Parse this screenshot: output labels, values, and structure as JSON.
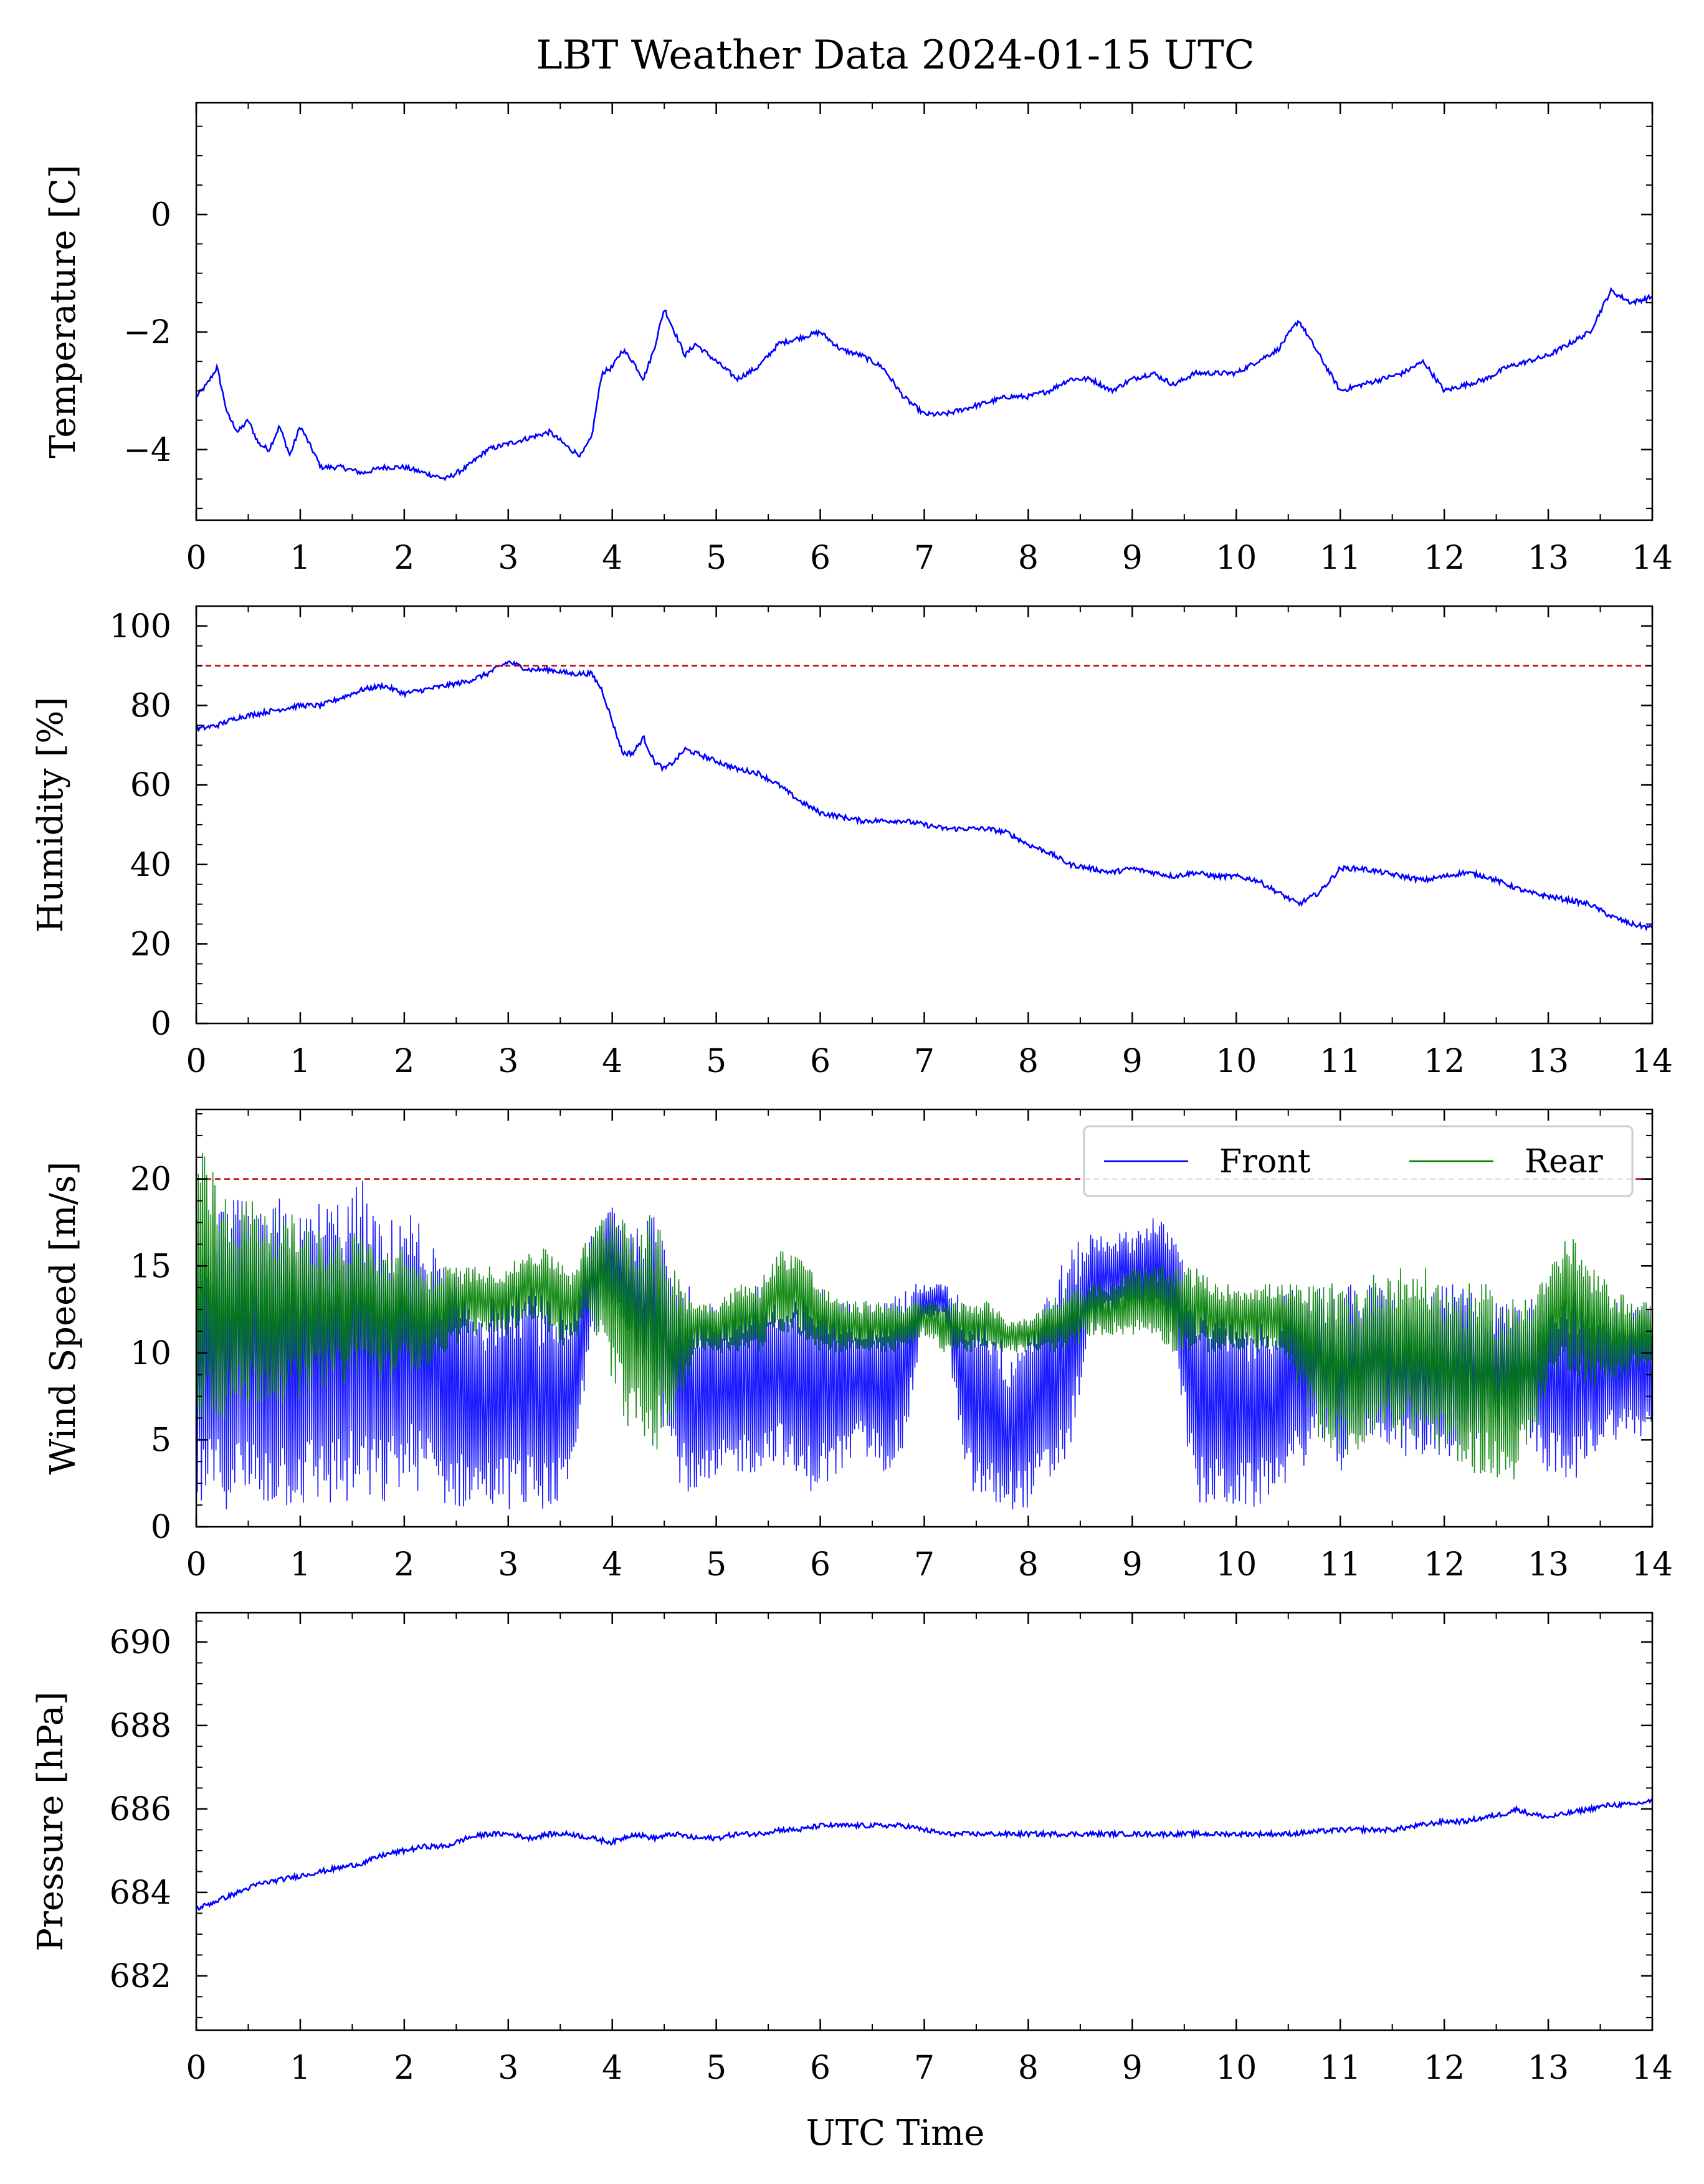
{
  "title": "LBT Weather Data 2024-01-15 UTC",
  "xlabel": "UTC Time",
  "colors": {
    "primary": "#0000ff",
    "secondary": "#008000",
    "threshold": "#c00000"
  },
  "chart_data": [
    {
      "type": "line",
      "ylabel": "Temperature [C]",
      "xlim": [
        0,
        14
      ],
      "ylim": [
        -5.2,
        1.9
      ],
      "yticks": [
        -4,
        -2,
        0
      ],
      "yticklabels": [
        "−4",
        "−2",
        "0"
      ],
      "xticks": [
        0,
        1,
        2,
        3,
        4,
        5,
        6,
        7,
        8,
        9,
        10,
        11,
        12,
        13,
        14
      ],
      "series": [
        {
          "color": "#0000ff",
          "x": [
            0,
            0.1,
            0.2,
            0.3,
            0.4,
            0.5,
            0.6,
            0.7,
            0.8,
            0.9,
            1.0,
            1.2,
            1.4,
            1.6,
            1.8,
            2.0,
            2.2,
            2.4,
            2.6,
            2.8,
            3.0,
            3.2,
            3.4,
            3.6,
            3.7,
            3.8,
            3.9,
            4.0,
            4.1,
            4.2,
            4.3,
            4.4,
            4.5,
            4.6,
            4.7,
            4.8,
            5.0,
            5.2,
            5.4,
            5.6,
            5.8,
            6.0,
            6.2,
            6.4,
            6.6,
            6.8,
            7.0,
            7.2,
            7.4,
            7.6,
            7.8,
            8.0,
            8.2,
            8.4,
            8.6,
            8.8,
            9.0,
            9.2,
            9.4,
            9.6,
            9.8,
            10.0,
            10.2,
            10.4,
            10.6,
            10.7,
            10.8,
            11.0,
            11.2,
            11.4,
            11.6,
            11.8,
            12.0,
            12.2,
            12.4,
            12.6,
            12.8,
            13.0,
            13.2,
            13.4,
            13.6,
            13.8,
            14.0
          ],
          "y": [
            -3.1,
            -2.9,
            -2.6,
            -3.4,
            -3.7,
            -3.5,
            -3.9,
            -4.0,
            -3.6,
            -4.1,
            -3.6,
            -4.3,
            -4.3,
            -4.4,
            -4.3,
            -4.3,
            -4.4,
            -4.5,
            -4.3,
            -4.0,
            -3.9,
            -3.8,
            -3.7,
            -4.0,
            -4.1,
            -3.8,
            -2.7,
            -2.6,
            -2.3,
            -2.5,
            -2.8,
            -2.3,
            -1.6,
            -2.0,
            -2.4,
            -2.2,
            -2.5,
            -2.8,
            -2.6,
            -2.2,
            -2.1,
            -2.0,
            -2.3,
            -2.4,
            -2.6,
            -3.1,
            -3.4,
            -3.4,
            -3.3,
            -3.2,
            -3.1,
            -3.1,
            -3.0,
            -2.8,
            -2.8,
            -3.0,
            -2.8,
            -2.7,
            -2.9,
            -2.7,
            -2.7,
            -2.7,
            -2.5,
            -2.3,
            -1.8,
            -2.1,
            -2.4,
            -3.0,
            -2.9,
            -2.8,
            -2.7,
            -2.5,
            -3.0,
            -2.9,
            -2.8,
            -2.6,
            -2.5,
            -2.4,
            -2.2,
            -2.0,
            -1.3,
            -1.5,
            -1.4
          ]
        }
      ]
    },
    {
      "type": "line",
      "ylabel": "Humidity [%]",
      "xlim": [
        0,
        14
      ],
      "ylim": [
        0,
        105
      ],
      "yticks": [
        0,
        20,
        40,
        60,
        80,
        100
      ],
      "yticklabels": [
        "0",
        "20",
        "40",
        "60",
        "80",
        "100"
      ],
      "xticks": [
        0,
        1,
        2,
        3,
        4,
        5,
        6,
        7,
        8,
        9,
        10,
        11,
        12,
        13,
        14
      ],
      "threshold": 90,
      "series": [
        {
          "color": "#0000ff",
          "x": [
            0,
            0.2,
            0.4,
            0.6,
            0.8,
            1.0,
            1.2,
            1.4,
            1.6,
            1.8,
            2.0,
            2.2,
            2.4,
            2.6,
            2.8,
            3.0,
            3.2,
            3.4,
            3.6,
            3.8,
            3.9,
            4.0,
            4.1,
            4.2,
            4.3,
            4.4,
            4.5,
            4.6,
            4.7,
            4.8,
            5.0,
            5.2,
            5.4,
            5.6,
            5.8,
            6.0,
            6.2,
            6.4,
            6.6,
            6.8,
            7.0,
            7.2,
            7.4,
            7.6,
            7.8,
            8.0,
            8.2,
            8.4,
            8.6,
            8.8,
            9.0,
            9.2,
            9.4,
            9.6,
            9.8,
            10.0,
            10.2,
            10.4,
            10.6,
            10.8,
            11.0,
            11.2,
            11.4,
            11.6,
            11.8,
            12.0,
            12.2,
            12.4,
            12.6,
            12.8,
            13.0,
            13.2,
            13.4,
            13.6,
            13.8,
            14.0
          ],
          "y": [
            74,
            75,
            77,
            78,
            79,
            80,
            80,
            82,
            84,
            85,
            83,
            84,
            85,
            86,
            88,
            91,
            89,
            89,
            88,
            88,
            84,
            76,
            68,
            68,
            72,
            66,
            64,
            66,
            69,
            68,
            66,
            64,
            63,
            60,
            56,
            53,
            52,
            51,
            51,
            51,
            50,
            49,
            49,
            49,
            48,
            45,
            43,
            40,
            39,
            38,
            39,
            38,
            37,
            38,
            37,
            37,
            36,
            33,
            30,
            33,
            39,
            39,
            38,
            37,
            36,
            37,
            38,
            37,
            35,
            33,
            32,
            31,
            30,
            27,
            25,
            24
          ]
        }
      ]
    },
    {
      "type": "line",
      "ylabel": "Wind Speed [m/s]",
      "xlim": [
        0,
        14
      ],
      "ylim": [
        0,
        24
      ],
      "yticks": [
        0,
        5,
        10,
        15,
        20
      ],
      "yticklabels": [
        "0",
        "5",
        "10",
        "15",
        "20"
      ],
      "xticks": [
        0,
        1,
        2,
        3,
        4,
        5,
        6,
        7,
        8,
        9,
        10,
        11,
        12,
        13,
        14
      ],
      "threshold": 20,
      "legend": "top-right",
      "series": [
        {
          "name": "Front",
          "color": "#0000ff",
          "x": [
            0,
            0.2,
            0.4,
            0.6,
            0.8,
            1.0,
            1.2,
            1.4,
            1.6,
            1.8,
            2.0,
            2.2,
            2.4,
            2.6,
            2.8,
            3.0,
            3.2,
            3.4,
            3.6,
            3.8,
            4.0,
            4.2,
            4.4,
            4.6,
            4.8,
            5.0,
            5.2,
            5.4,
            5.6,
            5.8,
            6.0,
            6.2,
            6.4,
            6.6,
            6.8,
            7.0,
            7.2,
            7.4,
            7.6,
            7.8,
            8.0,
            8.2,
            8.4,
            8.6,
            8.8,
            9.0,
            9.2,
            9.4,
            9.6,
            9.8,
            10.0,
            10.2,
            10.4,
            10.6,
            10.8,
            11.0,
            11.2,
            11.4,
            11.6,
            11.8,
            12.0,
            12.2,
            12.4,
            12.6,
            12.8,
            13.0,
            13.2,
            13.4,
            13.6,
            13.8,
            14.0
          ],
          "low": [
            1,
            1,
            1,
            1,
            1,
            1,
            1,
            1,
            1,
            1,
            2,
            2,
            1,
            1,
            1,
            1,
            1,
            1,
            1,
            11,
            12,
            10,
            8,
            3,
            1,
            2,
            3,
            3,
            4,
            2,
            2,
            3,
            4,
            3,
            4,
            12,
            12,
            2,
            1,
            1,
            1,
            2,
            4,
            11,
            12,
            12,
            12,
            11,
            1,
            1,
            1,
            1,
            2,
            3,
            5,
            3,
            5,
            5,
            4,
            4,
            4,
            4,
            5,
            5,
            5,
            3,
            2,
            4,
            5,
            5,
            5
          ],
          "high": [
            17,
            18,
            19,
            18,
            19,
            18,
            19,
            19,
            20,
            17,
            19,
            17,
            15,
            14,
            13,
            14,
            14,
            13,
            13,
            17,
            19,
            17,
            18,
            16,
            13,
            13,
            13,
            14,
            13,
            13,
            14,
            13,
            13,
            13,
            14,
            14,
            14,
            13,
            13,
            10,
            12,
            14,
            16,
            17,
            17,
            17,
            18,
            17,
            14,
            13,
            12,
            12,
            13,
            14,
            14,
            14,
            14,
            14,
            13,
            13,
            14,
            14,
            13,
            13,
            13,
            14,
            14,
            13,
            13,
            13,
            13
          ]
        },
        {
          "name": "Rear",
          "color": "#008000",
          "x": [
            0,
            0.2,
            0.4,
            0.6,
            0.8,
            1.0,
            1.2,
            1.4,
            1.6,
            1.8,
            2.0,
            2.2,
            2.4,
            2.6,
            2.8,
            3.0,
            3.2,
            3.4,
            3.6,
            3.8,
            4.0,
            4.2,
            4.4,
            4.6,
            4.8,
            5.0,
            5.2,
            5.4,
            5.6,
            5.8,
            6.0,
            6.2,
            6.4,
            6.6,
            6.8,
            7.0,
            7.2,
            7.4,
            7.6,
            7.8,
            8.0,
            8.2,
            8.4,
            8.6,
            8.8,
            9.0,
            9.2,
            9.4,
            9.6,
            9.8,
            10.0,
            10.2,
            10.4,
            10.6,
            10.8,
            11.0,
            11.2,
            11.4,
            11.6,
            11.8,
            12.0,
            12.2,
            12.4,
            12.6,
            12.8,
            13.0,
            13.2,
            13.4,
            13.6,
            13.8,
            14.0
          ],
          "low": [
            6,
            6,
            6,
            7,
            7,
            7,
            8,
            8,
            9,
            8,
            9,
            9,
            10,
            11,
            11,
            11,
            12,
            11,
            10,
            12,
            8,
            5,
            4,
            6,
            10,
            10,
            10,
            10,
            11,
            11,
            10,
            10,
            10,
            10,
            10,
            11,
            10,
            10,
            10,
            10,
            10,
            10,
            10,
            11,
            11,
            11,
            11,
            10,
            10,
            10,
            10,
            10,
            10,
            8,
            5,
            4,
            4,
            5,
            5,
            5,
            4,
            3,
            3,
            2,
            4,
            8,
            9,
            8,
            8,
            9,
            9
          ],
          "high": [
            23,
            20,
            19,
            19,
            18,
            18,
            17,
            17,
            17,
            16,
            16,
            15,
            15,
            15,
            15,
            15,
            16,
            16,
            15,
            17,
            19,
            18,
            18,
            15,
            13,
            13,
            14,
            14,
            16,
            16,
            14,
            13,
            13,
            13,
            13,
            13,
            13,
            13,
            13,
            12,
            12,
            13,
            14,
            14,
            14,
            15,
            15,
            15,
            15,
            14,
            14,
            14,
            14,
            14,
            14,
            14,
            14,
            15,
            15,
            15,
            14,
            14,
            14,
            13,
            14,
            15,
            17,
            15,
            14,
            13,
            13
          ]
        }
      ]
    },
    {
      "type": "line",
      "ylabel": "Pressure [hPa]",
      "xlabel": "UTC Time",
      "xlim": [
        0,
        14
      ],
      "ylim": [
        680.7,
        690.7
      ],
      "yticks": [
        682,
        684,
        686,
        688,
        690
      ],
      "yticklabels": [
        "682",
        "684",
        "686",
        "688",
        "690"
      ],
      "xticks": [
        0,
        1,
        2,
        3,
        4,
        5,
        6,
        7,
        8,
        9,
        10,
        11,
        12,
        13,
        14
      ],
      "series": [
        {
          "color": "#0000ff",
          "x": [
            0,
            0.2,
            0.4,
            0.6,
            0.8,
            1.0,
            1.2,
            1.4,
            1.6,
            1.8,
            2.0,
            2.2,
            2.4,
            2.6,
            2.8,
            3.0,
            3.2,
            3.4,
            3.6,
            3.8,
            4.0,
            4.2,
            4.4,
            4.6,
            4.8,
            5.0,
            5.2,
            5.4,
            5.6,
            5.8,
            6.0,
            6.2,
            6.4,
            6.6,
            6.8,
            7.0,
            7.2,
            7.4,
            7.6,
            7.8,
            8.0,
            8.5,
            9.0,
            9.5,
            10.0,
            10.5,
            11.0,
            11.5,
            12.0,
            12.2,
            12.4,
            12.6,
            12.7,
            12.8,
            13.0,
            13.2,
            13.4,
            13.6,
            13.8,
            14.0
          ],
          "y": [
            683.6,
            683.8,
            684.0,
            684.2,
            684.3,
            684.4,
            684.5,
            684.6,
            684.7,
            684.9,
            685.0,
            685.1,
            685.1,
            685.3,
            685.4,
            685.4,
            685.3,
            685.4,
            685.4,
            685.3,
            685.2,
            685.4,
            685.3,
            685.4,
            685.3,
            685.3,
            685.4,
            685.4,
            685.5,
            685.5,
            685.6,
            685.6,
            685.6,
            685.6,
            685.6,
            685.5,
            685.4,
            685.4,
            685.4,
            685.4,
            685.4,
            685.4,
            685.4,
            685.4,
            685.4,
            685.4,
            685.5,
            685.5,
            685.7,
            685.7,
            685.8,
            685.9,
            686.0,
            685.9,
            685.8,
            685.9,
            686.0,
            686.1,
            686.1,
            686.2
          ]
        }
      ]
    }
  ]
}
